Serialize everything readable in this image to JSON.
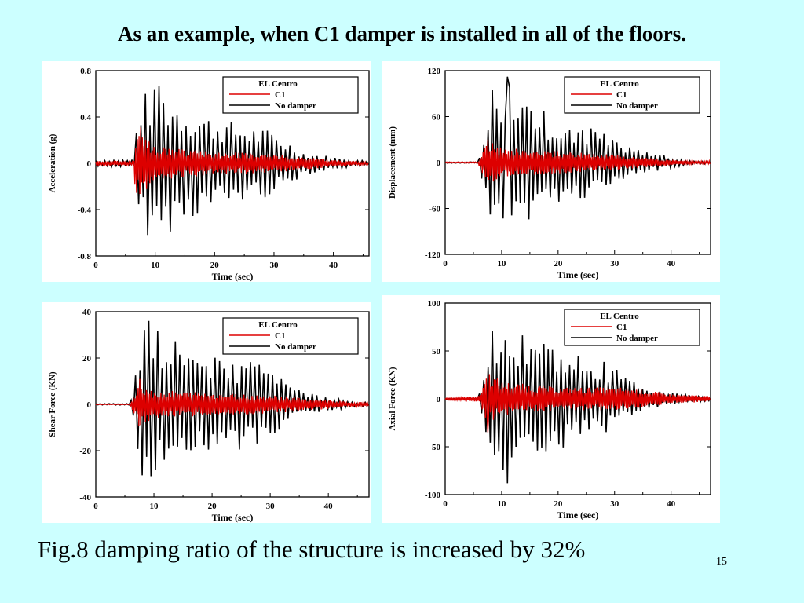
{
  "slide": {
    "title": "As an example, when C1 damper is installed in all of the floors.",
    "caption": "Fig.8 damping ratio of the structure is increased by 32%",
    "page_number": "15"
  },
  "colors": {
    "background": "#ccffff",
    "c1": "#dd0000",
    "no_damper": "#000000"
  },
  "chart_data": [
    {
      "type": "line",
      "xlabel": "Time (sec)",
      "ylabel": "Acceleration (g)",
      "xlim": [
        0,
        46
      ],
      "ylim": [
        -0.8,
        0.8
      ],
      "xticks": [
        "0",
        "10",
        "20",
        "30",
        "40"
      ],
      "yticks": [
        "0.8",
        "0.4",
        "0",
        "-0.4",
        "-0.8"
      ],
      "legend": [
        "EL Centro",
        "C1",
        "No damper"
      ],
      "series": [
        {
          "name": "C1",
          "color": "#dd0000",
          "onset": 6.5,
          "peak_time": 7.5,
          "peak": 0.31,
          "envelope": [
            [
              6,
              0.02
            ],
            [
              7,
              0.3
            ],
            [
              10,
              0.15
            ],
            [
              20,
              0.1
            ],
            [
              30,
              0.08
            ],
            [
              40,
              0.03
            ],
            [
              46,
              0.01
            ]
          ]
        },
        {
          "name": "No damper",
          "color": "#000000",
          "onset": 6.5,
          "peak_time": 10.5,
          "peak": 0.67,
          "envelope": [
            [
              6,
              0.02
            ],
            [
              7.5,
              0.6
            ],
            [
              10.5,
              0.67
            ],
            [
              15,
              0.5
            ],
            [
              20,
              0.4
            ],
            [
              30,
              0.28
            ],
            [
              35,
              0.1
            ],
            [
              42,
              0.04
            ],
            [
              46,
              0.02
            ]
          ]
        }
      ]
    },
    {
      "type": "line",
      "xlabel": "Time (sec)",
      "ylabel": "Displacement (mm)",
      "xlim": [
        0,
        47
      ],
      "ylim": [
        -120,
        120
      ],
      "xticks": [
        "0",
        "10",
        "20",
        "30",
        "40"
      ],
      "yticks": [
        "120",
        "60",
        "0",
        "-60",
        "-120"
      ],
      "legend": [
        "EL Centro",
        "C1",
        "No damper"
      ],
      "series": [
        {
          "name": "C1",
          "color": "#dd0000",
          "onset": 6,
          "peak_time": 7.5,
          "peak": 30,
          "envelope": [
            [
              6,
              5
            ],
            [
              7.5,
              30
            ],
            [
              10,
              20
            ],
            [
              20,
              15
            ],
            [
              30,
              10
            ],
            [
              40,
              4
            ],
            [
              44,
              2
            ]
          ]
        },
        {
          "name": "No damper",
          "color": "#000000",
          "onset": 6,
          "peak_time": 11,
          "peak": 112,
          "envelope": [
            [
              6,
              5
            ],
            [
              8,
              95
            ],
            [
              11,
              110
            ],
            [
              15,
              75
            ],
            [
              20,
              60
            ],
            [
              28,
              40
            ],
            [
              35,
              15
            ],
            [
              42,
              4
            ],
            [
              44,
              2
            ]
          ]
        }
      ]
    },
    {
      "type": "line",
      "xlabel": "Time (sec)",
      "ylabel": "Shear Force (KN)",
      "xlim": [
        0,
        47
      ],
      "ylim": [
        -40,
        40
      ],
      "xticks": [
        "0",
        "10",
        "20",
        "30",
        "40"
      ],
      "yticks": [
        "40",
        "20",
        "0",
        "-20",
        "-40"
      ],
      "legend": [
        "EL Centro",
        "C1",
        "No damper"
      ],
      "series": [
        {
          "name": "C1",
          "color": "#dd0000",
          "onset": 6,
          "peak_time": 7.5,
          "peak": 11,
          "envelope": [
            [
              6,
              1
            ],
            [
              7.5,
              10
            ],
            [
              10,
              6
            ],
            [
              20,
              5
            ],
            [
              30,
              4
            ],
            [
              40,
              2
            ],
            [
              44,
              1
            ]
          ]
        },
        {
          "name": "No damper",
          "color": "#000000",
          "onset": 6,
          "peak_time": 9,
          "peak": 36,
          "envelope": [
            [
              6,
              2
            ],
            [
              8,
              32
            ],
            [
              10,
              35
            ],
            [
              15,
              28
            ],
            [
              20,
              22
            ],
            [
              28,
              18
            ],
            [
              35,
              6
            ],
            [
              42,
              2
            ],
            [
              44,
              1
            ]
          ]
        }
      ]
    },
    {
      "type": "line",
      "xlabel": "Time (sec)",
      "ylabel": "Axial Force (KN)",
      "xlim": [
        0,
        47
      ],
      "ylim": [
        -100,
        100
      ],
      "xticks": [
        "0",
        "10",
        "20",
        "30",
        "40"
      ],
      "yticks": [
        "100",
        "50",
        "0",
        "-50",
        "-100"
      ],
      "legend": [
        "EL Centro",
        "C1",
        "No damper"
      ],
      "series": [
        {
          "name": "C1",
          "color": "#dd0000",
          "onset": 0,
          "peak_time": 7.5,
          "peak": -35,
          "envelope": [
            [
              0,
              1
            ],
            [
              6,
              3
            ],
            [
              7.5,
              30
            ],
            [
              10,
              18
            ],
            [
              20,
              12
            ],
            [
              32,
              12
            ],
            [
              40,
              5
            ],
            [
              47,
              3
            ]
          ]
        },
        {
          "name": "No damper",
          "color": "#000000",
          "onset": 6,
          "peak_time": 11,
          "peak": -88,
          "envelope": [
            [
              6,
              3
            ],
            [
              8,
              70
            ],
            [
              11,
              80
            ],
            [
              15,
              60
            ],
            [
              20,
              55
            ],
            [
              28,
              40
            ],
            [
              35,
              12
            ],
            [
              42,
              5
            ],
            [
              44,
              3
            ]
          ]
        }
      ]
    }
  ]
}
